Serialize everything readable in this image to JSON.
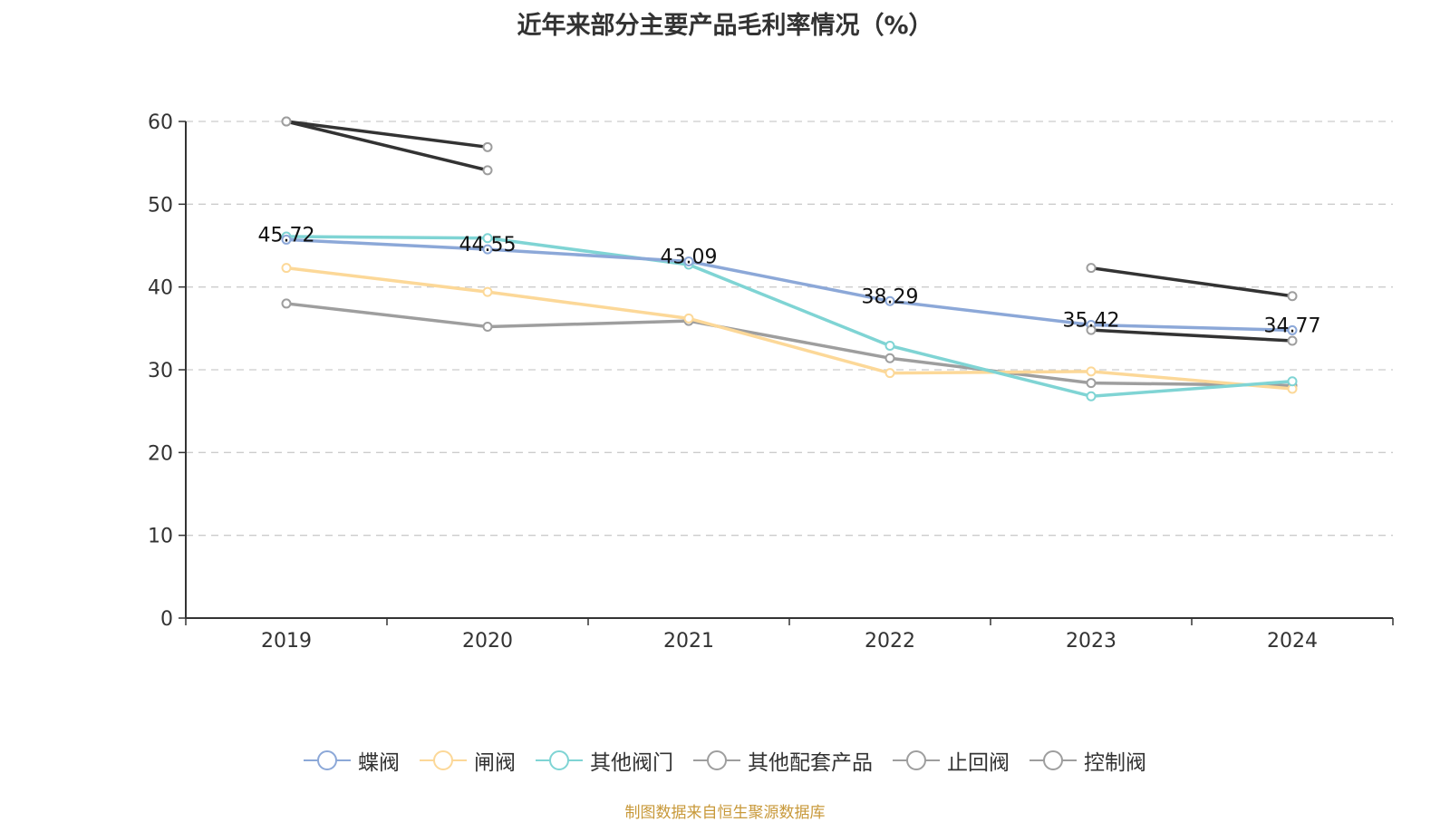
{
  "chart_data": {
    "type": "line",
    "title": "近年来部分主要产品毛利率情况（%）",
    "xlabel": "",
    "ylabel": "",
    "categories": [
      "2019",
      "2020",
      "2021",
      "2022",
      "2023",
      "2024"
    ],
    "ylim": [
      0,
      60
    ],
    "yticks": [
      0,
      10,
      20,
      30,
      40,
      50,
      60
    ],
    "grid": true,
    "legend_position": "bottom",
    "series": [
      {
        "name": "蝶阀",
        "color": "#8ca8d8",
        "values": [
          45.72,
          44.55,
          43.09,
          38.29,
          35.42,
          34.77
        ],
        "show_labels": true
      },
      {
        "name": "闸阀",
        "color": "#fcd898",
        "values": [
          42.3,
          39.4,
          36.2,
          29.6,
          29.8,
          27.7
        ],
        "show_labels": false
      },
      {
        "name": "其他阀门",
        "color": "#7fd4d4",
        "values": [
          46.1,
          45.9,
          42.7,
          32.9,
          26.8,
          28.6
        ],
        "show_labels": false
      },
      {
        "name": "其他配套产品",
        "color": "#9e9e9e",
        "values": [
          38.0,
          35.2,
          35.9,
          31.4,
          28.4,
          28.1
        ],
        "show_labels": false
      },
      {
        "name": "止回阀",
        "color": "#333333",
        "marker_color": "#9e9e9e",
        "values": [
          60.0,
          56.9,
          null,
          null,
          42.3,
          38.9
        ],
        "show_labels": false
      },
      {
        "name": "控制阀",
        "color": "#333333",
        "marker_color": "#9e9e9e",
        "values": [
          60.0,
          54.1,
          null,
          null,
          34.8,
          33.5
        ],
        "show_labels": false
      }
    ]
  },
  "legend": {
    "items": [
      {
        "label": "蝶阀",
        "color": "#8ca8d8"
      },
      {
        "label": "闸阀",
        "color": "#fcd898"
      },
      {
        "label": "其他阀门",
        "color": "#7fd4d4"
      },
      {
        "label": "其他配套产品",
        "color": "#9e9e9e"
      },
      {
        "label": "止回阀",
        "color": "#9e9e9e"
      },
      {
        "label": "控制阀",
        "color": "#9e9e9e"
      }
    ]
  },
  "source": "制图数据来自恒生聚源数据库"
}
